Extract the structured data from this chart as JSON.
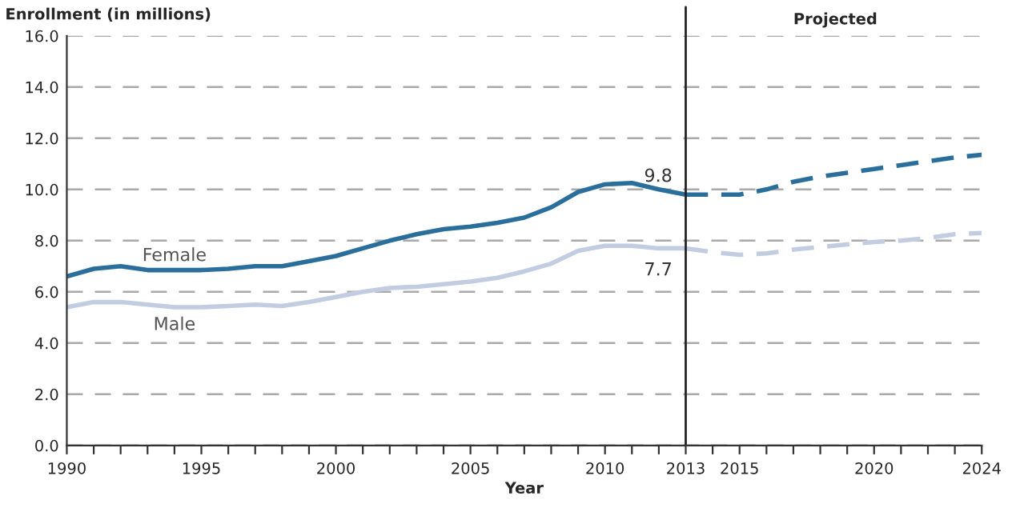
{
  "chart_data": {
    "type": "line",
    "ylabel": "Enrollment (in millions)",
    "xlabel": "Year",
    "xlim": [
      1990,
      2024
    ],
    "ylim": [
      0,
      16
    ],
    "xticks": [
      1990,
      {
        "value": 1991,
        "label": null
      },
      {
        "value": 1992,
        "label": null
      },
      {
        "value": 1993,
        "label": null
      },
      {
        "value": 1994,
        "label": null
      },
      1995,
      {
        "value": 1996,
        "label": null
      },
      {
        "value": 1997,
        "label": null
      },
      {
        "value": 1998,
        "label": null
      },
      {
        "value": 1999,
        "label": null
      },
      2000,
      {
        "value": 2001,
        "label": null
      },
      {
        "value": 2002,
        "label": null
      },
      {
        "value": 2003,
        "label": null
      },
      {
        "value": 2004,
        "label": null
      },
      2005,
      {
        "value": 2006,
        "label": null
      },
      {
        "value": 2007,
        "label": null
      },
      {
        "value": 2008,
        "label": null
      },
      {
        "value": 2009,
        "label": null
      },
      2010,
      {
        "value": 2011,
        "label": null
      },
      {
        "value": 2012,
        "label": null
      },
      2013,
      {
        "value": 2014,
        "label": null
      },
      2015,
      {
        "value": 2016,
        "label": null
      },
      {
        "value": 2017,
        "label": null
      },
      {
        "value": 2018,
        "label": null
      },
      {
        "value": 2019,
        "label": null
      },
      2020,
      {
        "value": 2021,
        "label": null
      },
      {
        "value": 2022,
        "label": null
      },
      {
        "value": 2023,
        "label": null
      },
      2024
    ],
    "yticks": [
      {
        "value": 0,
        "label": "0.0"
      },
      {
        "value": 2,
        "label": "2.0"
      },
      {
        "value": 4,
        "label": "4.0"
      },
      {
        "value": 6,
        "label": "6.0"
      },
      {
        "value": 8,
        "label": "8.0"
      },
      {
        "value": 10,
        "label": "10.0"
      },
      {
        "value": 12,
        "label": "12.0"
      },
      {
        "value": 14,
        "label": "14.0"
      },
      {
        "value": 16,
        "label": "16.0"
      }
    ],
    "grid": "y",
    "legend": false,
    "series": [
      {
        "name": "Female",
        "color": "#2a6e9b",
        "line_style": "solid",
        "x": [
          1990,
          1991,
          1992,
          1993,
          1994,
          1995,
          1996,
          1997,
          1998,
          1999,
          2000,
          2001,
          2002,
          2003,
          2004,
          2005,
          2006,
          2007,
          2008,
          2009,
          2010,
          2011,
          2012,
          2013
        ],
        "values": [
          6.6,
          6.9,
          7.0,
          6.85,
          6.85,
          6.85,
          6.9,
          7.0,
          7.0,
          7.2,
          7.4,
          7.7,
          8.0,
          8.25,
          8.45,
          8.55,
          8.7,
          8.9,
          9.3,
          9.9,
          10.2,
          10.25,
          10.0,
          9.8
        ]
      },
      {
        "color": "#2a6e9b",
        "line_style": "dashed",
        "x": [
          2013,
          2014,
          2015,
          2016,
          2017,
          2018,
          2019,
          2020,
          2021,
          2022,
          2023,
          2024
        ],
        "values": [
          9.8,
          9.8,
          9.8,
          10.0,
          10.3,
          10.5,
          10.65,
          10.8,
          10.95,
          11.1,
          11.25,
          11.35
        ]
      },
      {
        "name": "Male",
        "color": "#c3cde2",
        "line_style": "solid",
        "x": [
          1990,
          1991,
          1992,
          1993,
          1994,
          1995,
          1996,
          1997,
          1998,
          1999,
          2000,
          2001,
          2002,
          2003,
          2004,
          2005,
          2006,
          2007,
          2008,
          2009,
          2010,
          2011,
          2012,
          2013
        ],
        "values": [
          5.4,
          5.6,
          5.6,
          5.5,
          5.4,
          5.4,
          5.45,
          5.5,
          5.45,
          5.6,
          5.8,
          6.0,
          6.15,
          6.2,
          6.3,
          6.4,
          6.55,
          6.8,
          7.1,
          7.6,
          7.8,
          7.8,
          7.7,
          7.7
        ]
      },
      {
        "color": "#c3cde2",
        "line_style": "dashed",
        "x": [
          2013,
          2014,
          2015,
          2016,
          2017,
          2018,
          2019,
          2020,
          2021,
          2022,
          2023,
          2024
        ],
        "values": [
          7.7,
          7.55,
          7.45,
          7.5,
          7.65,
          7.75,
          7.85,
          7.95,
          8.0,
          8.1,
          8.25,
          8.3
        ]
      }
    ],
    "ref_lines": [
      {
        "axis": "x",
        "value": 2013,
        "color": "#222222"
      }
    ],
    "annotations": [
      "Projected",
      {
        "text": "9.8",
        "x": 2013,
        "y": 9.8
      },
      {
        "text": "7.7",
        "x": 2013,
        "y": 7.7
      }
    ]
  }
}
